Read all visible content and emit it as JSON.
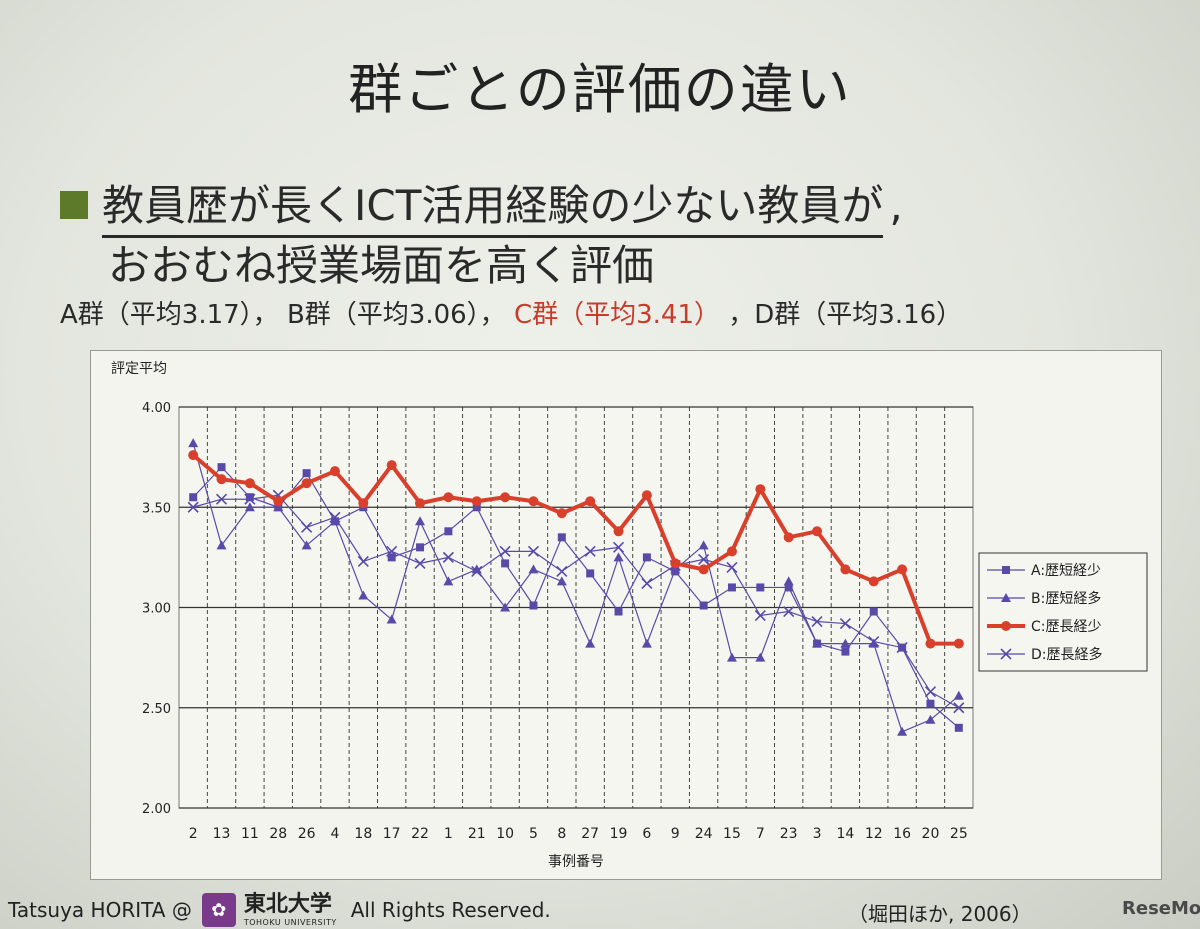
{
  "slide": {
    "title": "群ごとの評価の違い",
    "bullet_text": "教員歴が長くICT活用経験の少ない教員が",
    "bullet_tail": ",",
    "bullet_line2": "おおむね授業場面を高く評価",
    "groups": {
      "a": "A群（平均3.17），",
      "b": "B群（平均3.06），",
      "c": "C群（平均3.41）",
      "d": "，D群（平均3.16）"
    }
  },
  "footer": {
    "author": "Tatsuya HORITA @",
    "logo_glyph": "✿",
    "university_jp": "東北大学",
    "university_en": "TOHOKU UNIVERSITY",
    "rights": "All Rights Reserved.",
    "citation": "（堀田ほか, 2006）",
    "watermark": "ReseMom"
  },
  "colors": {
    "accent_red": "#d8402c",
    "series_purple": "#5a4aa8",
    "bullet_green": "#5c7a2a"
  },
  "chart_data": {
    "type": "line",
    "ylabel": "評定平均",
    "xlabel": "事例番号",
    "ylim": [
      2.0,
      4.0
    ],
    "yticks": [
      "2.00",
      "2.50",
      "3.00",
      "3.50",
      "4.00"
    ],
    "grid": true,
    "legend": "right",
    "categories": [
      "2",
      "13",
      "11",
      "28",
      "26",
      "4",
      "18",
      "17",
      "22",
      "1",
      "21",
      "10",
      "5",
      "8",
      "27",
      "19",
      "6",
      "9",
      "24",
      "15",
      "7",
      "23",
      "3",
      "14",
      "12",
      "16",
      "20",
      "25"
    ],
    "series": [
      {
        "name": "A:歴短経少",
        "marker": "square",
        "values": [
          3.55,
          3.7,
          3.55,
          3.5,
          3.67,
          3.43,
          3.5,
          3.25,
          3.3,
          3.38,
          3.5,
          3.22,
          3.01,
          3.35,
          3.17,
          2.98,
          3.25,
          3.18,
          3.01,
          3.1,
          3.1,
          3.1,
          2.82,
          2.78,
          2.98,
          2.8,
          2.52,
          2.4
        ]
      },
      {
        "name": "B:歴短経多",
        "marker": "triangle",
        "values": [
          3.82,
          3.31,
          3.5,
          3.5,
          3.31,
          3.43,
          3.06,
          2.94,
          3.43,
          3.13,
          3.19,
          3.0,
          3.19,
          3.13,
          2.82,
          3.25,
          2.82,
          3.19,
          3.31,
          2.75,
          2.75,
          3.13,
          2.82,
          2.82,
          2.82,
          2.38,
          2.44,
          2.56
        ]
      },
      {
        "name": "C:歴長経少",
        "marker": "circle",
        "values": [
          3.76,
          3.64,
          3.62,
          3.53,
          3.62,
          3.68,
          3.52,
          3.71,
          3.52,
          3.55,
          3.53,
          3.55,
          3.53,
          3.47,
          3.53,
          3.38,
          3.56,
          3.22,
          3.19,
          3.28,
          3.59,
          3.35,
          3.38,
          3.19,
          3.13,
          3.19,
          2.82,
          2.82
        ]
      },
      {
        "name": "D:歴長経多",
        "marker": "x",
        "values": [
          3.5,
          3.54,
          3.54,
          3.56,
          3.4,
          3.45,
          3.23,
          3.28,
          3.22,
          3.25,
          3.18,
          3.28,
          3.28,
          3.18,
          3.28,
          3.3,
          3.12,
          3.21,
          3.24,
          3.2,
          2.96,
          2.98,
          2.93,
          2.92,
          2.83,
          2.8,
          2.58,
          2.5
        ]
      }
    ]
  }
}
